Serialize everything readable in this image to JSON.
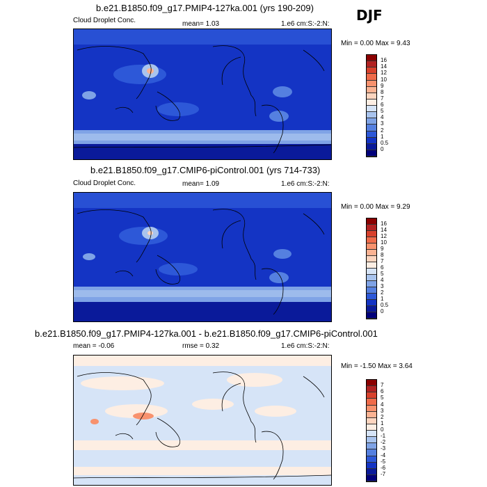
{
  "season": "DJF",
  "panels": [
    {
      "title": "b.e21.B1850.f09_g17.PMIP4-127ka.001 (yrs 190-209)",
      "field": "Cloud Droplet Conc.",
      "stat": "mean=   1.03",
      "units": "1.e6 cm:S:-2:N:",
      "minmax": "Min =   0.00 Max =   9.43",
      "levels": [
        "16",
        "14",
        "12",
        "10",
        "9",
        "8",
        "7",
        "6",
        "5",
        "4",
        "3",
        "2",
        "1",
        "0.5",
        "0"
      ],
      "colors": [
        "#8b0000",
        "#b22222",
        "#d8412c",
        "#ef6b4a",
        "#f8926e",
        "#fbb393",
        "#fdd5bf",
        "#fdeee3",
        "#d6e4f7",
        "#a9c4ee",
        "#7fa3e6",
        "#5580e0",
        "#2d58d8",
        "#1434c4",
        "#0a1a9a",
        "#00007a"
      ]
    },
    {
      "title": "b.e21.B1850.f09_g17.CMIP6-piControl.001 (yrs 714-733)",
      "field": "Cloud Droplet Conc.",
      "stat": "mean=   1.09",
      "units": "1.e6 cm:S:-2:N:",
      "minmax": "Min =   0.00 Max =   9.29",
      "levels": [
        "16",
        "14",
        "12",
        "10",
        "9",
        "8",
        "7",
        "6",
        "5",
        "4",
        "3",
        "2",
        "1",
        "0.5",
        "0"
      ],
      "colors": [
        "#8b0000",
        "#b22222",
        "#d8412c",
        "#ef6b4a",
        "#f8926e",
        "#fbb393",
        "#fdd5bf",
        "#fdeee3",
        "#d6e4f7",
        "#a9c4ee",
        "#7fa3e6",
        "#5580e0",
        "#2d58d8",
        "#1434c4",
        "#0a1a9a",
        "#00007a"
      ]
    },
    {
      "title": "b.e21.B1850.f09_g17.PMIP4-127ka.001 - b.e21.B1850.f09_g17.CMIP6-piControl.001",
      "stat": "mean =  -0.06",
      "rmse": "rmse =   0.32",
      "units": "1.e6 cm:S:-2:N:",
      "minmax": "Min =  -1.50 Max =   3.64",
      "levels": [
        "7",
        "6",
        "5",
        "4",
        "3",
        "2",
        "1",
        "0",
        "-1",
        "-2",
        "-3",
        "-4",
        "-5",
        "-6",
        "-7"
      ],
      "colors": [
        "#8b0000",
        "#b22222",
        "#d8412c",
        "#ef6b4a",
        "#f8926e",
        "#fbb393",
        "#fdd5bf",
        "#fdeee3",
        "#d6e4f7",
        "#a9c4ee",
        "#7fa3e6",
        "#5580e0",
        "#2d58d8",
        "#1434c4",
        "#0a1a9a",
        "#00007a"
      ]
    }
  ],
  "chart_data": [
    {
      "type": "heatmap",
      "title": "b.e21.B1850.f09_g17.PMIP4-127ka.001 (yrs 190-209)",
      "variable": "Cloud Droplet Conc.",
      "units": "1.e6 cm:S:-2:N:",
      "mean": 1.03,
      "min": 0.0,
      "max": 9.43,
      "contour_levels": [
        0,
        0.5,
        1,
        2,
        3,
        4,
        5,
        6,
        7,
        8,
        9,
        10,
        12,
        14,
        16
      ]
    },
    {
      "type": "heatmap",
      "title": "b.e21.B1850.f09_g17.CMIP6-piControl.001 (yrs 714-733)",
      "variable": "Cloud Droplet Conc.",
      "units": "1.e6 cm:S:-2:N:",
      "mean": 1.09,
      "min": 0.0,
      "max": 9.29,
      "contour_levels": [
        0,
        0.5,
        1,
        2,
        3,
        4,
        5,
        6,
        7,
        8,
        9,
        10,
        12,
        14,
        16
      ]
    },
    {
      "type": "heatmap",
      "title": "b.e21.B1850.f09_g17.PMIP4-127ka.001 - b.e21.B1850.f09_g17.CMIP6-piControl.001",
      "units": "1.e6 cm:S:-2:N:",
      "mean": -0.06,
      "rmse": 0.32,
      "min": -1.5,
      "max": 3.64,
      "contour_levels": [
        -7,
        -6,
        -5,
        -4,
        -3,
        -2,
        -1,
        0,
        1,
        2,
        3,
        4,
        5,
        6,
        7
      ]
    }
  ]
}
